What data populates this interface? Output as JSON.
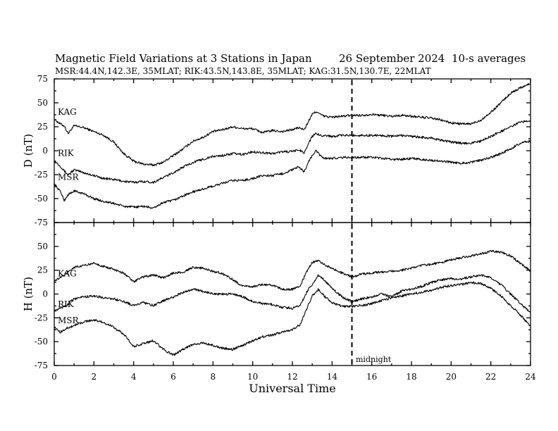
{
  "header": {
    "title": "Magnetic Field Variations at 3 Stations in Japan",
    "date": "26 September 2024",
    "averaging": "10-s averages",
    "stations_line": "MSR:44.4N,142.3E, 35MLAT;  RIK:43.5N,143.8E, 35MLAT;  KAG:31.5N,130.7E, 22MLAT"
  },
  "annotation": {
    "midnight": "midnight"
  },
  "colors": {
    "ink": "#000000",
    "background": "#ffffff"
  },
  "chart_data": [
    {
      "type": "line",
      "panel": "top",
      "title": "",
      "xlabel": "Universal Time",
      "ylabel": "D (nT)",
      "xlim": [
        0,
        24
      ],
      "ylim": [
        -75,
        75
      ],
      "xticks": [
        0,
        2,
        4,
        6,
        8,
        10,
        12,
        14,
        16,
        18,
        20,
        22,
        24
      ],
      "yticks": [
        -75,
        -50,
        -25,
        0,
        25,
        50,
        75
      ],
      "vline": 15,
      "series": [
        {
          "name": "KAG",
          "x": [
            0,
            0.3,
            0.5,
            0.7,
            1,
            1.5,
            2,
            2.5,
            3,
            3.5,
            4,
            4.5,
            5,
            5.5,
            6,
            6.5,
            7,
            7.5,
            8,
            8.5,
            9,
            9.5,
            10,
            10.5,
            11,
            11.5,
            12,
            12.3,
            12.6,
            12.8,
            13,
            13.2,
            13.4,
            13.6,
            14,
            14.5,
            15,
            15.5,
            16,
            16.5,
            17,
            17.5,
            18,
            18.5,
            19,
            19.5,
            20,
            20.5,
            21,
            21.5,
            22,
            22.5,
            23,
            23.5,
            24
          ],
          "y": [
            33,
            28,
            26,
            18,
            26,
            24,
            20,
            16,
            9,
            -3,
            -11,
            -14,
            -15,
            -12,
            -5,
            2,
            10,
            14,
            20,
            22,
            25,
            23,
            23,
            19,
            21,
            20,
            22,
            24,
            22,
            30,
            38,
            41,
            38,
            36,
            35,
            36,
            37,
            37,
            38,
            37,
            36,
            37,
            36,
            35,
            34,
            32,
            29,
            28,
            28,
            32,
            40,
            50,
            60,
            66,
            70
          ]
        },
        {
          "name": "RIK",
          "x": [
            0,
            0.3,
            0.5,
            0.7,
            1,
            1.5,
            2,
            2.5,
            3,
            3.5,
            4,
            4.5,
            5,
            5.5,
            6,
            6.5,
            7,
            7.5,
            8,
            8.5,
            9,
            9.5,
            10,
            10.5,
            11,
            11.5,
            12,
            12.3,
            12.6,
            12.8,
            13,
            13.2,
            13.4,
            13.6,
            14,
            14.5,
            15,
            15.5,
            16,
            16.5,
            17,
            17.5,
            18,
            18.5,
            19,
            19.5,
            20,
            20.5,
            21,
            21.5,
            22,
            22.5,
            23,
            23.5,
            24
          ],
          "y": [
            -10,
            -16,
            -21,
            -25,
            -20,
            -23,
            -26,
            -29,
            -30,
            -32,
            -33,
            -32,
            -33,
            -28,
            -23,
            -17,
            -12,
            -9,
            -6,
            -5,
            -3,
            -4,
            -1,
            -2,
            -3,
            -1,
            -1,
            1,
            -2,
            7,
            15,
            18,
            16,
            16,
            15,
            16,
            16,
            16,
            16,
            16,
            15,
            16,
            15,
            14,
            13,
            11,
            9,
            8,
            8,
            10,
            15,
            20,
            25,
            30,
            32
          ]
        },
        {
          "name": "MSR",
          "x": [
            0,
            0.3,
            0.5,
            0.7,
            1,
            1.5,
            2,
            2.5,
            3,
            3.5,
            4,
            4.5,
            5,
            5.5,
            6,
            6.5,
            7,
            7.5,
            8,
            8.5,
            9,
            9.5,
            10,
            10.5,
            11,
            11.5,
            12,
            12.3,
            12.6,
            12.8,
            13,
            13.2,
            13.4,
            13.6,
            14,
            14.5,
            15,
            15.5,
            16,
            16.5,
            17,
            17.5,
            18,
            18.5,
            19,
            19.5,
            20,
            20.5,
            21,
            21.5,
            22,
            22.5,
            23,
            23.5,
            24
          ],
          "y": [
            -35,
            -42,
            -52,
            -46,
            -42,
            -45,
            -50,
            -53,
            -55,
            -58,
            -59,
            -58,
            -60,
            -54,
            -52,
            -47,
            -43,
            -40,
            -37,
            -34,
            -31,
            -31,
            -29,
            -26,
            -26,
            -24,
            -20,
            -17,
            -22,
            -12,
            -5,
            0,
            -5,
            -8,
            -8,
            -7,
            -7,
            -7,
            -7,
            -8,
            -9,
            -9,
            -8,
            -9,
            -10,
            -11,
            -12,
            -13,
            -12,
            -10,
            -7,
            -3,
            2,
            8,
            10
          ]
        }
      ]
    },
    {
      "type": "line",
      "panel": "bottom",
      "title": "",
      "xlabel": "Universal Time",
      "ylabel": "H (nT)",
      "xlim": [
        0,
        24
      ],
      "ylim": [
        -75,
        75
      ],
      "xticks": [
        0,
        2,
        4,
        6,
        8,
        10,
        12,
        14,
        16,
        18,
        20,
        22,
        24
      ],
      "yticks": [
        -75,
        -50,
        -25,
        0,
        25,
        50,
        75
      ],
      "vline": 15,
      "series": [
        {
          "name": "KAG",
          "x": [
            0,
            0.3,
            0.6,
            1,
            1.5,
            2,
            2.5,
            3,
            3.5,
            4,
            4.5,
            5,
            5.5,
            6,
            6.5,
            7,
            7.5,
            8,
            8.5,
            9,
            9.5,
            10,
            10.5,
            11,
            11.5,
            12,
            12.4,
            12.8,
            13,
            13.3,
            13.6,
            14,
            14.5,
            15,
            15.5,
            16,
            16.5,
            17,
            17.5,
            18,
            18.5,
            19,
            19.5,
            20,
            20.5,
            21,
            21.5,
            22,
            22.5,
            23,
            23.5,
            24
          ],
          "y": [
            14,
            17,
            22,
            28,
            30,
            32,
            29,
            26,
            22,
            13,
            18,
            20,
            17,
            22,
            23,
            28,
            27,
            24,
            21,
            15,
            8,
            8,
            10,
            9,
            5,
            5,
            9,
            27,
            33,
            35,
            31,
            27,
            22,
            18,
            21,
            22,
            23,
            24,
            25,
            27,
            30,
            31,
            33,
            36,
            38,
            40,
            42,
            45,
            44,
            40,
            32,
            24
          ]
        },
        {
          "name": "RIK",
          "x": [
            0,
            0.3,
            0.6,
            1,
            1.5,
            2,
            2.5,
            3,
            3.5,
            4,
            4.5,
            5,
            5.5,
            6,
            6.5,
            7,
            7.5,
            8,
            8.5,
            9,
            9.5,
            10,
            10.5,
            11,
            11.5,
            12,
            12.4,
            12.8,
            13,
            13.3,
            13.6,
            14,
            14.5,
            15,
            15.5,
            16,
            16.5,
            17,
            17.5,
            18,
            18.5,
            19,
            19.5,
            20,
            20.5,
            21,
            21.5,
            22,
            22.5,
            23,
            23.5,
            24
          ],
          "y": [
            -18,
            -15,
            -12,
            -5,
            -3,
            -2,
            -4,
            -5,
            -8,
            -12,
            -9,
            -12,
            -7,
            -3,
            2,
            5,
            3,
            0,
            0,
            0,
            -3,
            -8,
            -10,
            -11,
            -14,
            -15,
            -12,
            5,
            10,
            20,
            15,
            6,
            -3,
            -8,
            -5,
            -3,
            0,
            -3,
            3,
            5,
            8,
            12,
            15,
            16,
            16,
            18,
            20,
            17,
            10,
            0,
            -10,
            -20
          ]
        },
        {
          "name": "MSR",
          "x": [
            0,
            0.3,
            0.6,
            1,
            1.5,
            2,
            2.5,
            3,
            3.5,
            4,
            4.5,
            5,
            5.5,
            6,
            6.5,
            7,
            7.5,
            8,
            8.5,
            9,
            9.5,
            10,
            10.5,
            11,
            11.5,
            12,
            12.4,
            12.8,
            13,
            13.3,
            13.6,
            14,
            14.5,
            15,
            15.5,
            16,
            16.5,
            17,
            17.5,
            18,
            18.5,
            19,
            19.5,
            20,
            20.5,
            21,
            21.5,
            22,
            22.5,
            23,
            23.5,
            24
          ],
          "y": [
            -35,
            -40,
            -36,
            -33,
            -29,
            -27,
            -30,
            -35,
            -42,
            -55,
            -52,
            -49,
            -58,
            -64,
            -58,
            -53,
            -51,
            -54,
            -57,
            -58,
            -54,
            -49,
            -45,
            -43,
            -40,
            -37,
            -32,
            -12,
            -2,
            5,
            -2,
            -9,
            -13,
            -13,
            -12,
            -10,
            -7,
            -4,
            -2,
            0,
            2,
            4,
            7,
            9,
            10,
            12,
            11,
            6,
            -2,
            -12,
            -22,
            -34
          ]
        }
      ]
    }
  ]
}
